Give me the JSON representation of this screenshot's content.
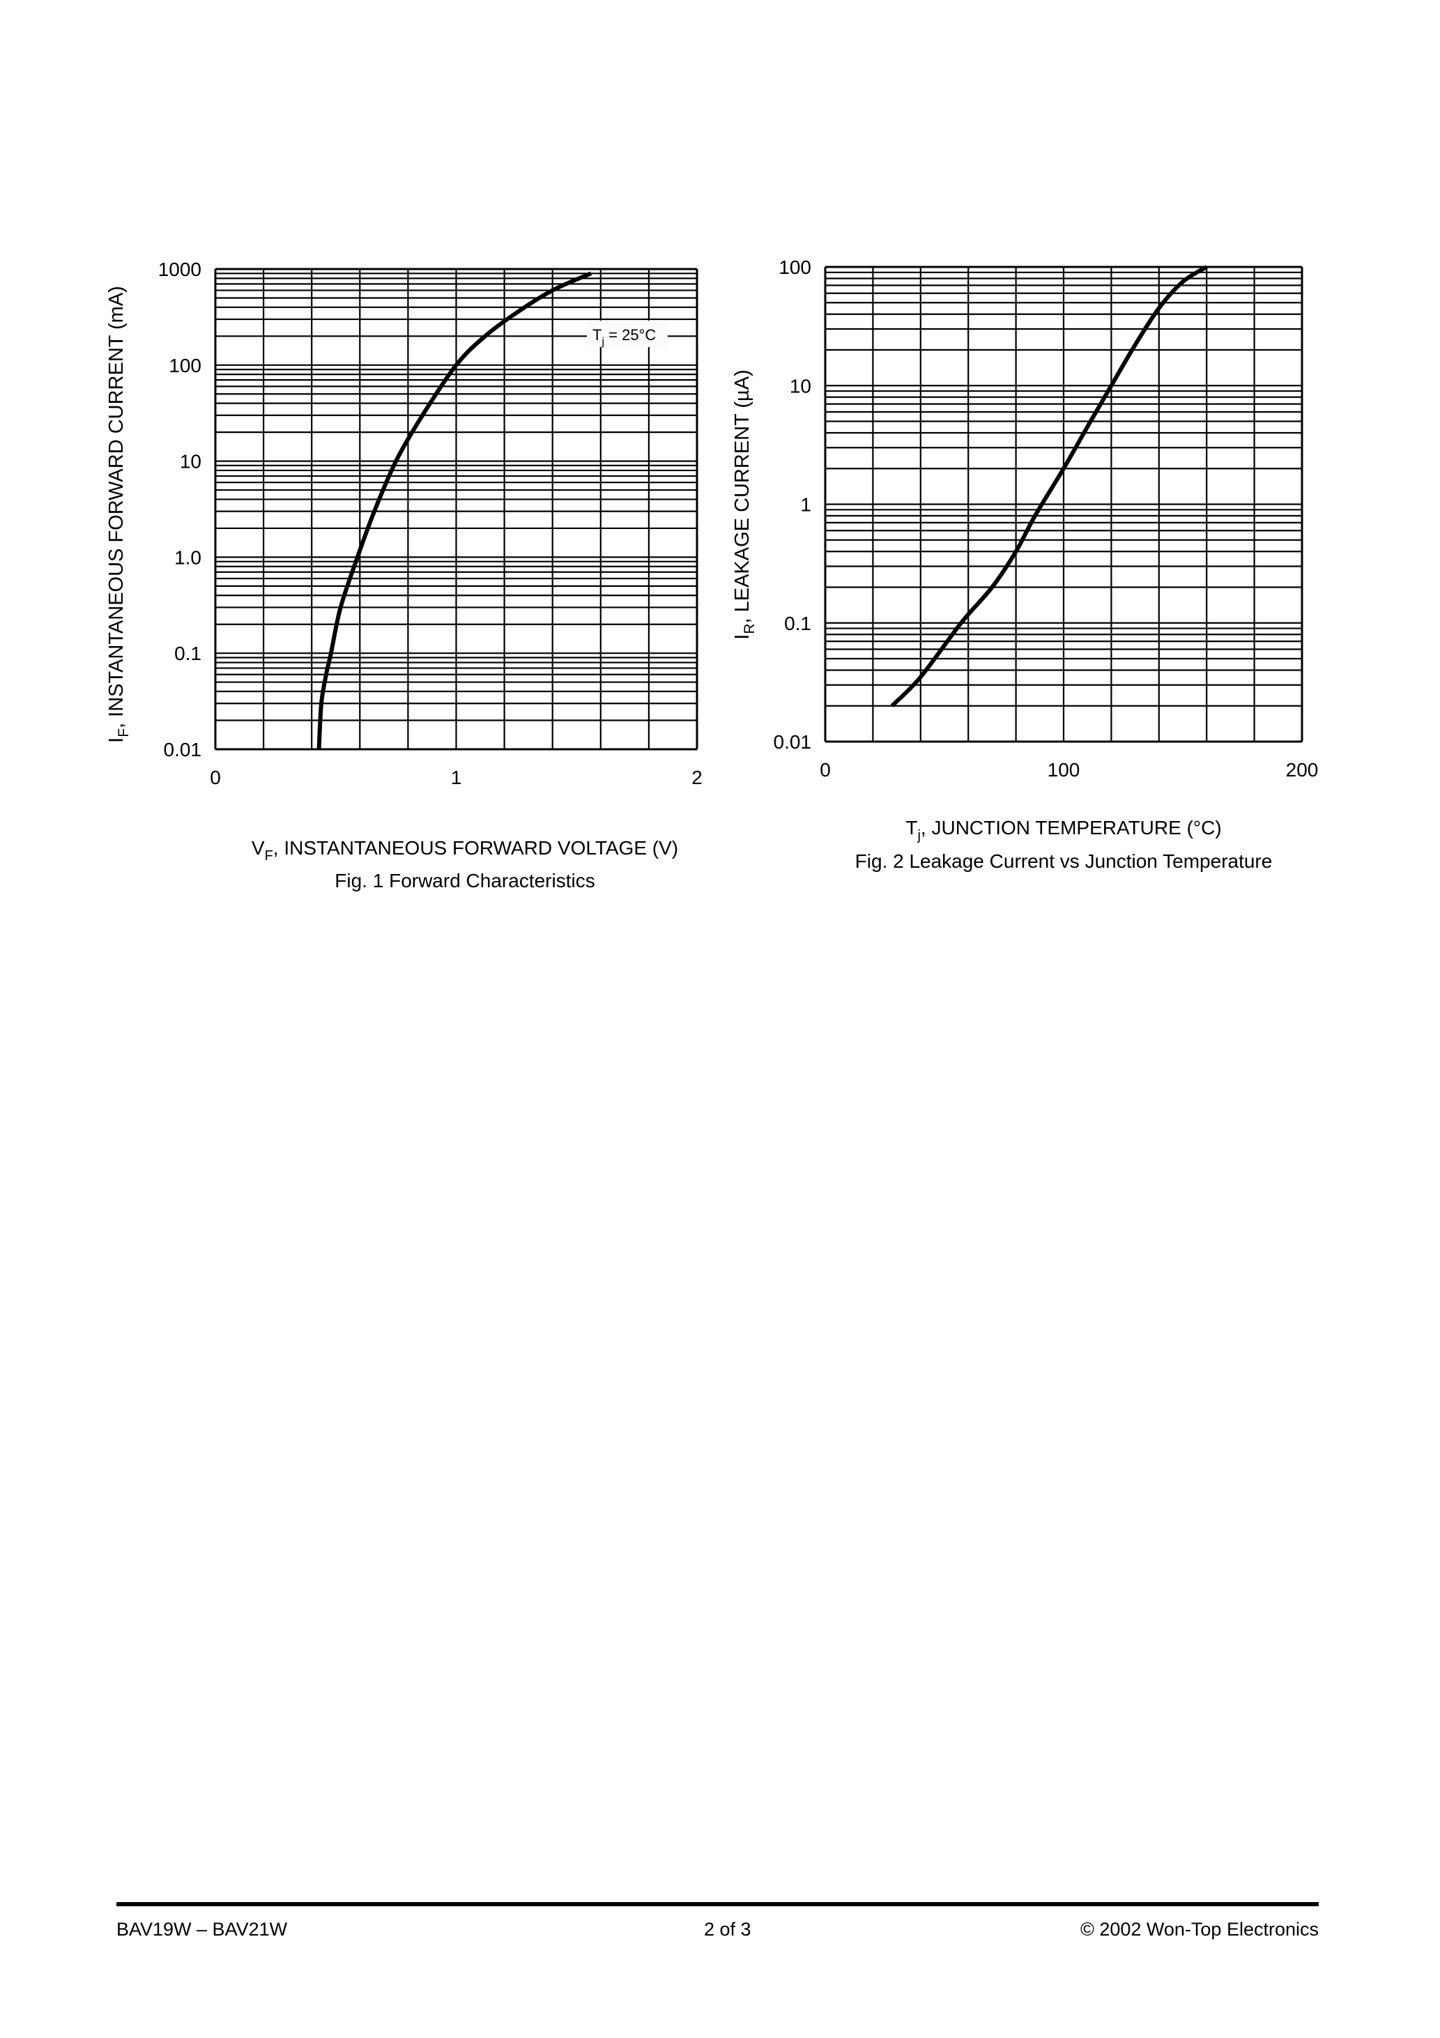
{
  "chart_data": [
    {
      "type": "line",
      "title": "Fig. 1  Forward Characteristics",
      "xlabel": "V_F, INSTANTANEOUS FORWARD VOLTAGE (V)",
      "ylabel": "I_F, INSTANTANEOUS FORWARD CURRENT (mA)",
      "xscale": "linear",
      "yscale": "log",
      "xlim": [
        0,
        2
      ],
      "ylim": [
        0.01,
        1000
      ],
      "xticks": [
        "0",
        "1",
        "2"
      ],
      "yticks": [
        "0.01",
        "0.1",
        "1.0",
        "10",
        "100",
        "1000"
      ],
      "grid": true,
      "annotation": "Tj = 25°C",
      "series": [
        {
          "name": "Tj = 25°C",
          "x": [
            0.43,
            0.44,
            0.46,
            0.48,
            0.52,
            0.59,
            0.66,
            0.75,
            0.86,
            1.0,
            1.12,
            1.25,
            1.4,
            1.56
          ],
          "y": [
            0.01,
            0.03,
            0.06,
            0.1,
            0.3,
            1.0,
            3.0,
            10,
            30,
            100,
            200,
            350,
            600,
            900
          ]
        }
      ]
    },
    {
      "type": "line",
      "title": "Fig. 2  Leakage Current vs Junction Temperature",
      "xlabel": "Tj, JUNCTION TEMPERATURE (°C)",
      "ylabel": "I_R, LEAKAGE CURRENT (µA)",
      "xscale": "linear",
      "yscale": "log",
      "xlim": [
        0,
        200
      ],
      "ylim": [
        0.01,
        100
      ],
      "xticks": [
        "0",
        "100",
        "200"
      ],
      "yticks": [
        "0.01",
        "0.1",
        "1",
        "10",
        "100"
      ],
      "grid": true,
      "series": [
        {
          "name": "I_R",
          "x": [
            28,
            40,
            57,
            70,
            80,
            88,
            100,
            110,
            120,
            130,
            140,
            150,
            160
          ],
          "y": [
            0.02,
            0.035,
            0.1,
            0.2,
            0.4,
            0.8,
            2.0,
            4.5,
            10,
            22,
            45,
            75,
            100
          ]
        }
      ]
    }
  ],
  "fig1": {
    "y_ticks": [
      "1000",
      "100",
      "10",
      "1.0",
      "0.1",
      "0.01"
    ],
    "x_ticks": [
      "0",
      "1",
      "2"
    ],
    "ylabel_main": "I",
    "ylabel_sub": "F",
    "ylabel_rest": ", INSTANTANEOUS FORWARD CURRENT (mA)",
    "xlabel_main": "V",
    "xlabel_sub": "F",
    "xlabel_rest": ", INSTANTANEOUS FORWARD VOLTAGE (V)",
    "caption": "Fig. 1  Forward Characteristics",
    "annotation_main": "T",
    "annotation_sub": "j",
    "annotation_rest": " = 25°C"
  },
  "fig2": {
    "y_ticks": [
      "100",
      "10",
      "1",
      "0.1",
      "0.01"
    ],
    "x_ticks": [
      "0",
      "100",
      "200"
    ],
    "ylabel_main": "I",
    "ylabel_sub": "R",
    "ylabel_rest": ", LEAKAGE CURRENT (µA)",
    "xlabel_main": "T",
    "xlabel_sub": "j",
    "xlabel_rest": ", JUNCTION TEMPERATURE (°C)",
    "caption": "Fig. 2  Leakage Current vs Junction Temperature"
  },
  "footer": {
    "left": "BAV19W – BAV21W",
    "center": "2 of 3",
    "right": "© 2002 Won-Top Electronics"
  }
}
